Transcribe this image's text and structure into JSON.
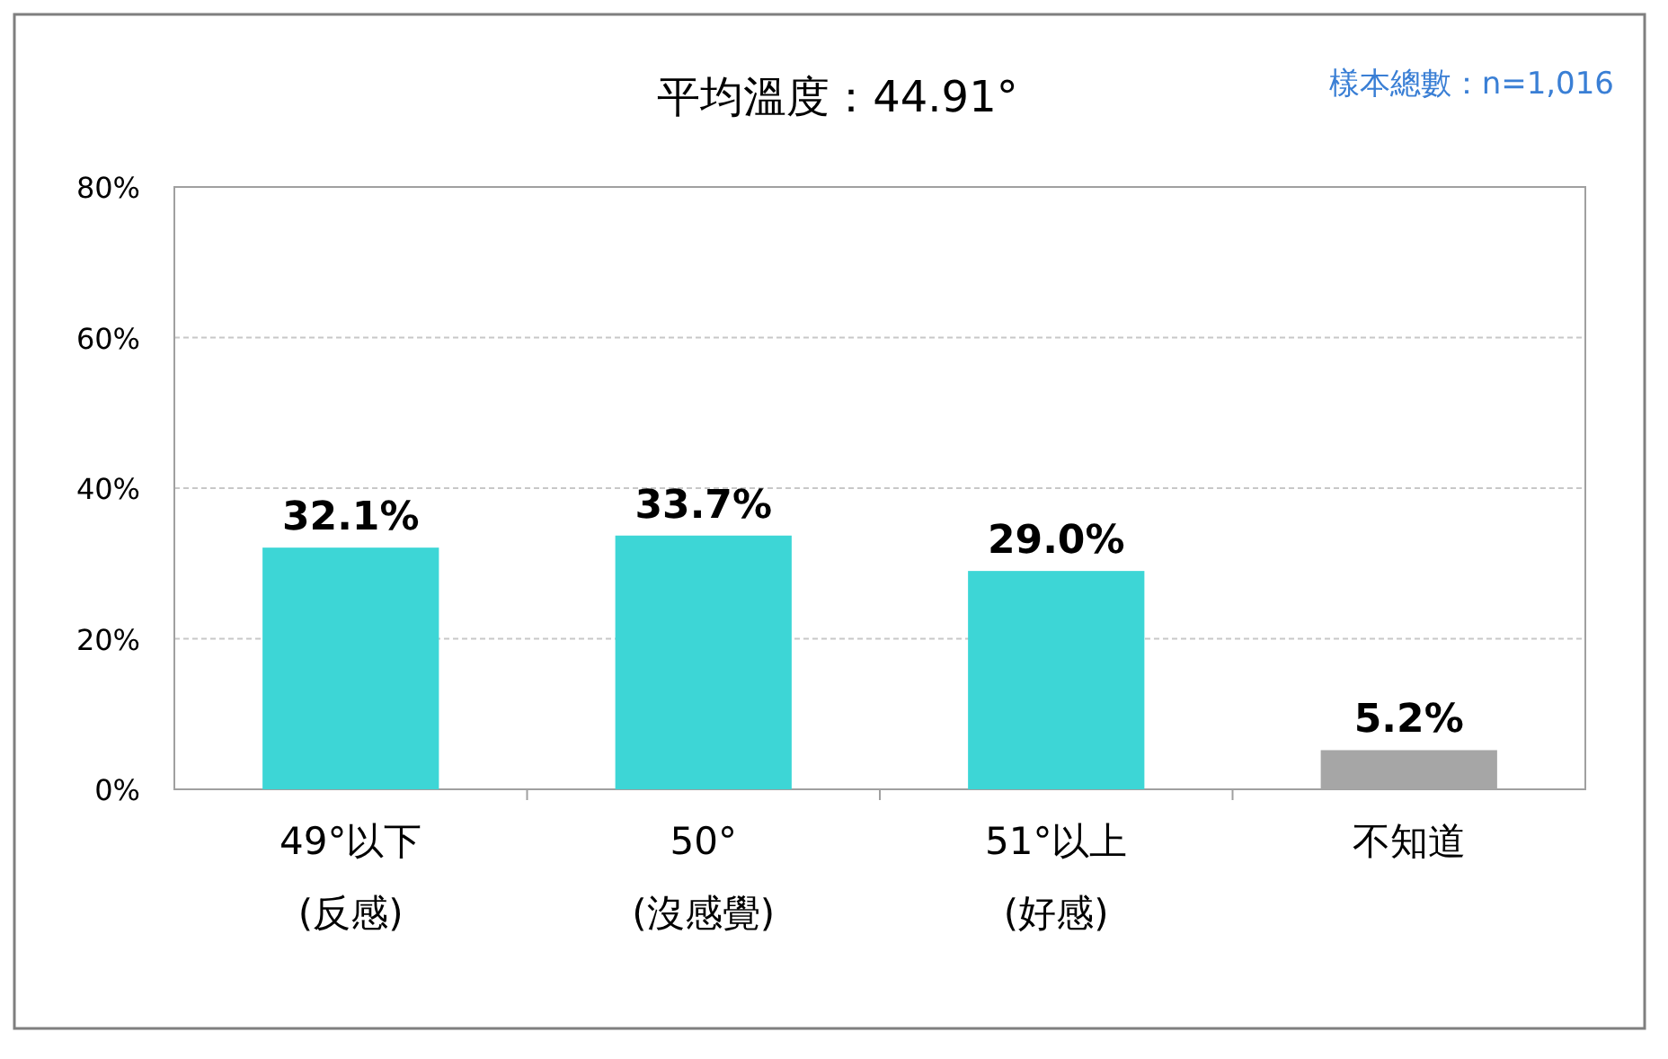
{
  "chart_data": {
    "type": "bar",
    "title": "平均溫度：44.91°",
    "annotations": [
      "樣本總數：n=1,016"
    ],
    "categories": [
      "49°以下\n(反感)",
      "50°\n(沒感覺)",
      "51°以上\n(好感)",
      "不知道"
    ],
    "values": [
      32.1,
      33.7,
      29.0,
      5.2
    ],
    "colors": [
      "#3dd6d6",
      "#3dd6d6",
      "#3dd6d6",
      "#a6a6a6"
    ],
    "value_labels": [
      "32.1%",
      "33.7%",
      "29.0%",
      "5.2%"
    ],
    "ylim": [
      0,
      80
    ],
    "yticks": [
      {
        "value": 0,
        "label": "0%"
      },
      {
        "value": 20,
        "label": "20%"
      },
      {
        "value": 40,
        "label": "40%"
      },
      {
        "value": 60,
        "label": "60%"
      },
      {
        "value": 80,
        "label": "80%"
      }
    ],
    "grid": "y"
  }
}
